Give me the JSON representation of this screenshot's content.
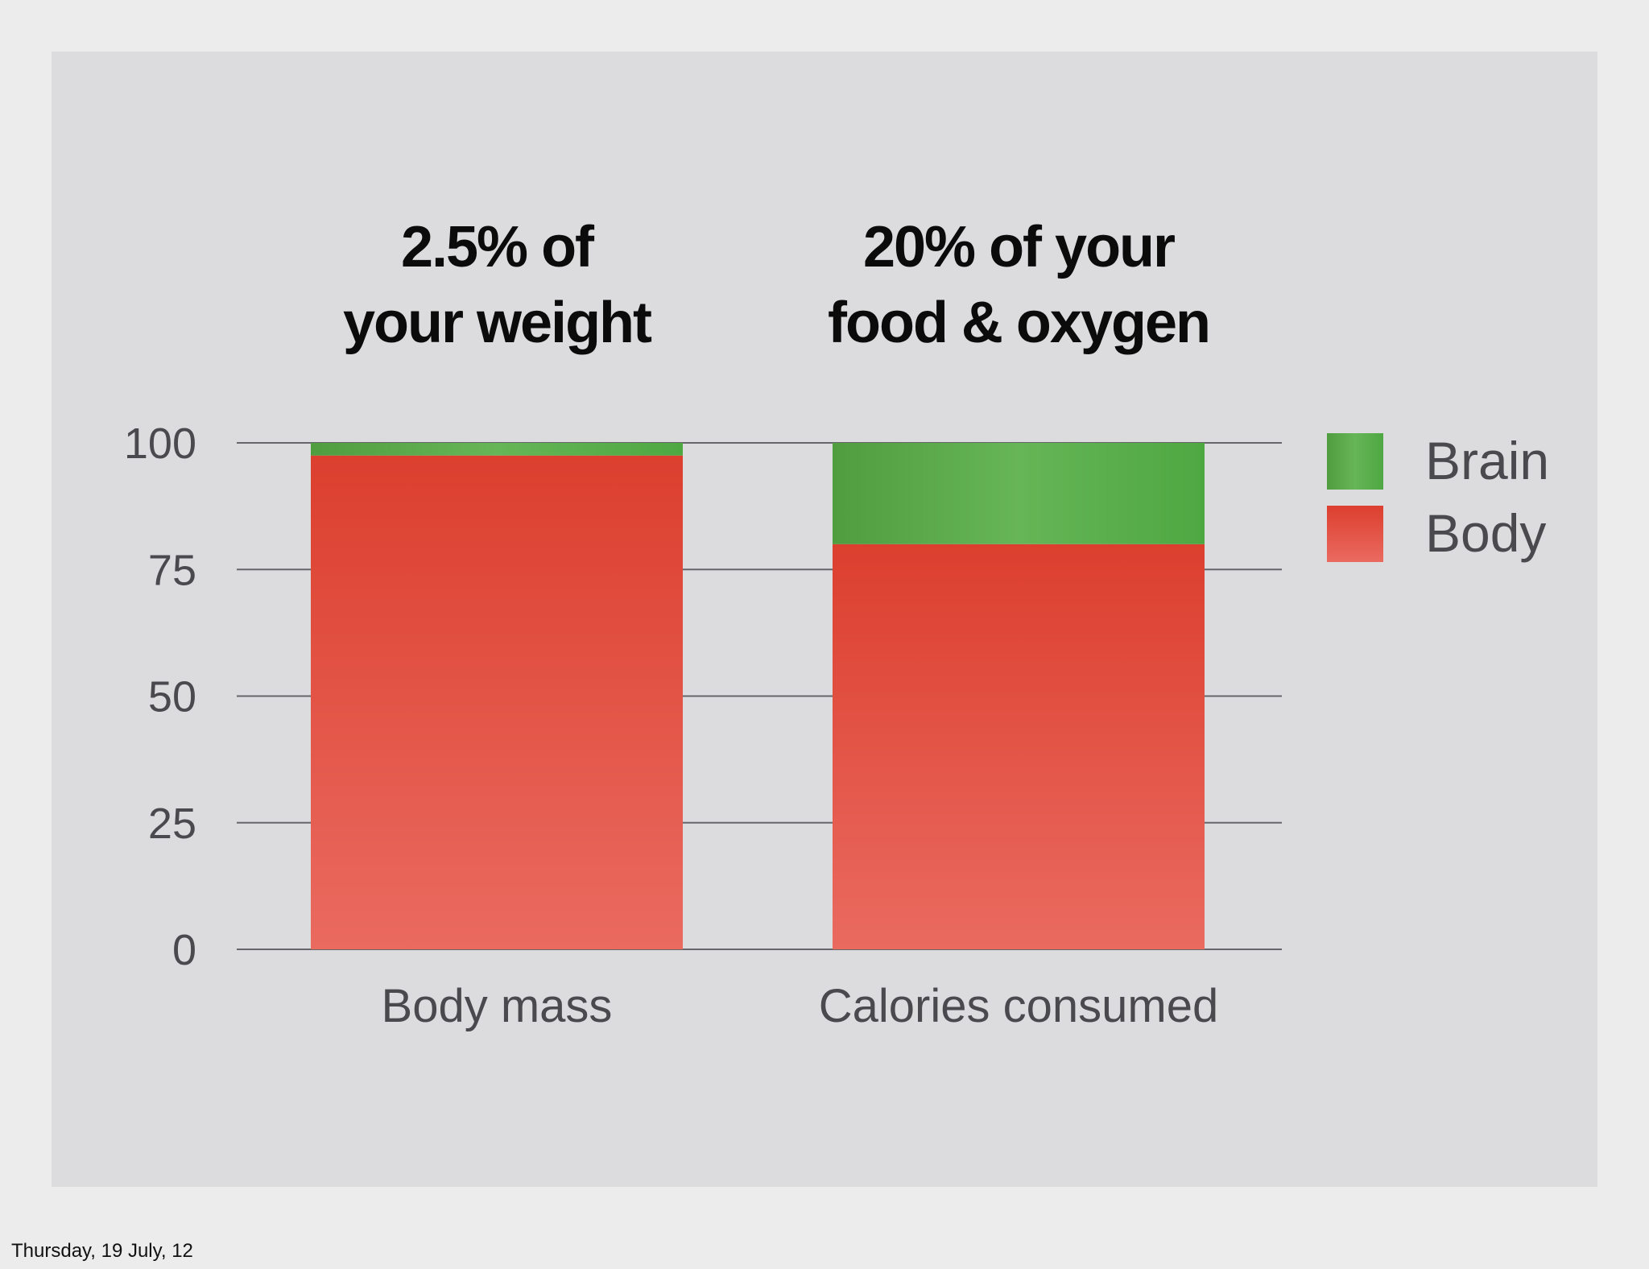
{
  "footer": {
    "date": "Thursday, 19 July, 12"
  },
  "chart_data": {
    "type": "bar",
    "stacked": true,
    "categories": [
      "Body mass",
      "Calories consumed"
    ],
    "series": [
      {
        "name": "Body",
        "values": [
          97.5,
          80
        ],
        "color": "#e4554a"
      },
      {
        "name": "Brain",
        "values": [
          2.5,
          20
        ],
        "color": "#5aac4c"
      }
    ],
    "annotations": [
      {
        "category": "Body mass",
        "lines": [
          "2.5% of",
          "your weight"
        ]
      },
      {
        "category": "Calories consumed",
        "lines": [
          "20% of your",
          "food & oxygen"
        ]
      }
    ],
    "yticks": [
      0,
      25,
      50,
      75,
      100
    ],
    "ylim": [
      0,
      100
    ],
    "grid": true,
    "legend": {
      "position": "right",
      "order": [
        "Brain",
        "Body"
      ]
    },
    "xlabel": "",
    "ylabel": ""
  }
}
